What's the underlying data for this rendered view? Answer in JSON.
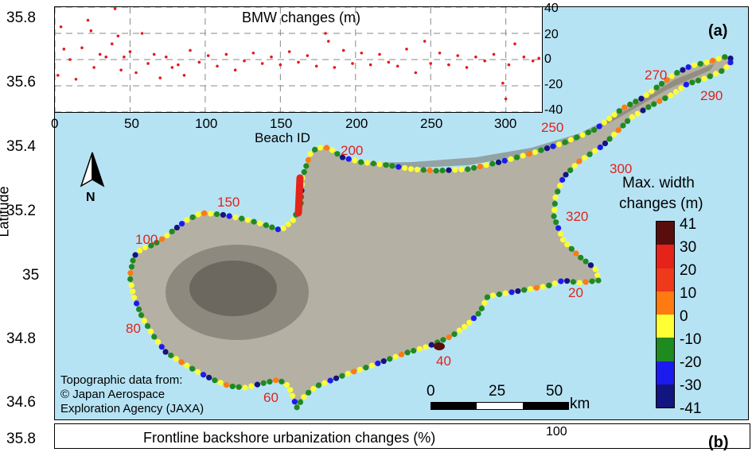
{
  "map": {
    "panel_label": "(a)",
    "y_axis_label": "Latitude",
    "lat_ticks": [
      "35.8",
      "35.6",
      "35.4",
      "35.2",
      "35",
      "34.8",
      "34.6"
    ],
    "beach_labels": [
      "20",
      "40",
      "60",
      "80",
      "100",
      "150",
      "200",
      "250",
      "270",
      "290",
      "300",
      "320"
    ],
    "north_label": "N",
    "credit_lines": [
      "Topographic data from:",
      "© Japan Aerospace",
      "Exploration Agency (JAXA)"
    ],
    "scale_bar": {
      "ticks": [
        "0",
        "25",
        "50"
      ],
      "unit": "km"
    },
    "colors": {
      "sea": "#b6e3f4",
      "land": "#b5b0a4"
    }
  },
  "legend": {
    "title_lines": [
      "Max. width",
      "changes (m)"
    ],
    "entries": [
      {
        "label": "41",
        "color": "#5a0d0d"
      },
      {
        "label": "30",
        "color": "#e5231b"
      },
      {
        "label": "20",
        "color": "#ee3a1a"
      },
      {
        "label": "10",
        "color": "#ff7a10"
      },
      {
        "label": "0",
        "color": "#ffff33"
      },
      {
        "label": "-10",
        "color": "#1f8a1f"
      },
      {
        "label": "-20",
        "color": "#1b1bf0"
      },
      {
        "label": "-30",
        "color": "#121480"
      },
      {
        "label": "-41",
        "color": "#000000"
      }
    ]
  },
  "inset": {
    "title": "BMW changes (m)",
    "x_label": "Beach ID",
    "x_ticks": [
      "0",
      "50",
      "100",
      "150",
      "200",
      "250",
      "300"
    ],
    "y_ticks": [
      "40",
      "20",
      "0",
      "-20",
      "-40"
    ]
  },
  "bottom_panel": {
    "title": "Frontline backshore urbanization changes (%)",
    "lat_tick": "35.8",
    "right_tick": "100",
    "panel_label": "(b)"
  },
  "chart_data": {
    "type": "scatter",
    "title": "BMW changes (m)",
    "xlabel": "Beach ID",
    "ylabel": "",
    "xlim": [
      0,
      324
    ],
    "ylim": [
      -40,
      40
    ],
    "grid": true,
    "series": [
      {
        "color": "#e41a1c",
        "x": [
          2,
          4,
          6,
          10,
          14,
          18,
          22,
          24,
          26,
          30,
          34,
          38,
          40,
          42,
          44,
          46,
          50,
          54,
          58,
          62,
          66,
          70,
          74,
          78,
          82,
          86,
          90,
          96,
          102,
          108,
          114,
          120,
          126,
          132,
          138,
          144,
          150,
          156,
          162,
          168,
          174,
          180,
          182,
          186,
          192,
          198,
          204,
          210,
          216,
          222,
          228,
          234,
          240,
          246,
          250,
          256,
          262,
          268,
          274,
          280,
          286,
          292,
          298,
          300,
          302,
          306,
          312,
          318,
          322
        ],
        "values": [
          -12,
          25,
          8,
          0,
          -15,
          9,
          30,
          22,
          -6,
          4,
          2,
          12,
          44,
          18,
          -8,
          2,
          6,
          -10,
          20,
          -3,
          4,
          -14,
          2,
          -6,
          -4,
          -12,
          7,
          -2,
          3,
          -5,
          4,
          -8,
          -1,
          5,
          -3,
          2,
          -4,
          6,
          -2,
          3,
          -5,
          20,
          14,
          -6,
          7,
          -3,
          5,
          -4,
          4,
          -2,
          -5,
          8,
          -10,
          14,
          -3,
          5,
          -4,
          3,
          -6,
          2,
          -1,
          4,
          -18,
          -30,
          -4,
          12,
          2,
          -1,
          1
        ]
      }
    ]
  }
}
